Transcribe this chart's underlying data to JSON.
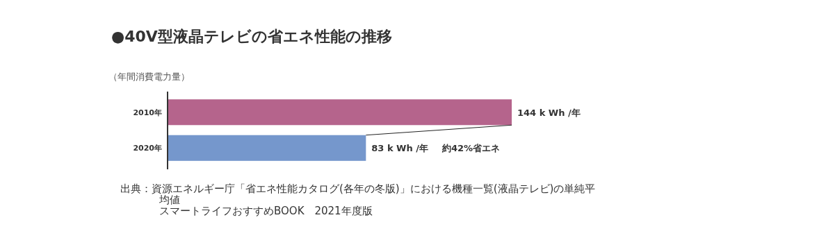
{
  "chart_data": {
    "type": "bar",
    "orientation": "horizontal",
    "title": "●40V型液晶テレビの省エネ性能の推移",
    "ylabel": "（年間消費電力量）",
    "categories": [
      "2010年",
      "2020年"
    ],
    "xlim": [
      0,
      144
    ],
    "values": [
      144,
      83
    ],
    "colors": [
      "#b5648c",
      "#7597cc"
    ],
    "value_labels": [
      "144 k Wh /年",
      "83 k Wh /年"
    ],
    "tick_labels": "y",
    "annotations": [
      "約42%省エネ",
      "出典：資源エネルギー庁「省エネ性能カタログ(各年の冬版)」における機種一覧(液晶テレビ)の単純平均値",
      "スマートライフおすすめBOOK　2021年度版"
    ]
  }
}
